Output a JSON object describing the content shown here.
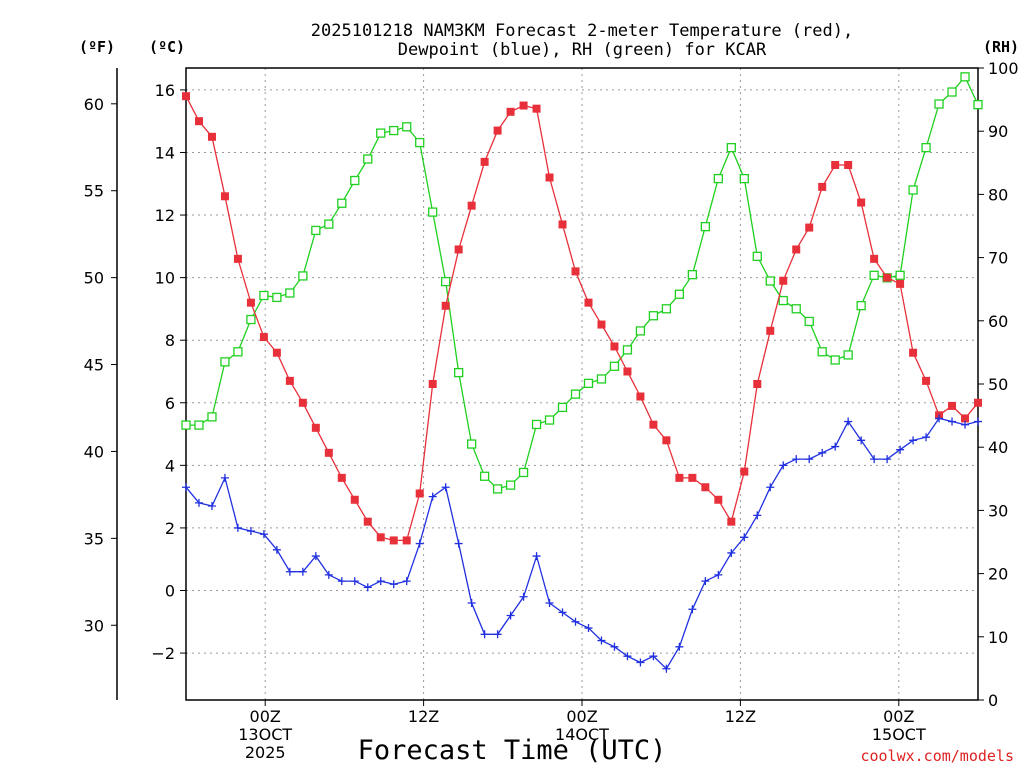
{
  "chart_data": {
    "type": "line",
    "title": [
      "2025101218 NAM3KM Forecast 2-meter Temperature (red),",
      "Dewpoint (blue), RH (green) for KCAR"
    ],
    "xlabel": "Forecast Time (UTC)",
    "unit_labels": {
      "fahrenheit": "(ºF)",
      "celsius": "(ºC)",
      "rh": "(RH)"
    },
    "credit": "coolwx.com/models",
    "x_range_hours": [
      -6,
      54
    ],
    "x_ticks": [
      {
        "hour": 0,
        "lines": [
          "00Z",
          "13OCT",
          "2025"
        ]
      },
      {
        "hour": 12,
        "lines": [
          "12Z"
        ]
      },
      {
        "hour": 24,
        "lines": [
          "00Z",
          "14OCT"
        ]
      },
      {
        "hour": 36,
        "lines": [
          "12Z"
        ]
      },
      {
        "hour": 48,
        "lines": [
          "00Z",
          "15OCT"
        ]
      }
    ],
    "y_left_c": {
      "range": [
        -3.5,
        16.7
      ],
      "ticks": [
        -2,
        0,
        2,
        4,
        6,
        8,
        10,
        12,
        14,
        16
      ]
    },
    "y_left_f": {
      "ticks": [
        30,
        35,
        40,
        45,
        50,
        55,
        60
      ]
    },
    "y_right_rh": {
      "range": [
        0,
        100
      ],
      "ticks": [
        0,
        10,
        20,
        30,
        40,
        50,
        60,
        70,
        80,
        90,
        100
      ]
    },
    "series": [
      {
        "name": "2-meter Temperature (°C)",
        "axis": "celsius",
        "color": "#e8303a",
        "marker": "filled-square",
        "values": [
          15.8,
          15.0,
          14.5,
          12.6,
          10.6,
          9.2,
          8.1,
          7.6,
          6.7,
          6.0,
          5.2,
          4.4,
          3.6,
          2.9,
          2.2,
          1.7,
          1.6,
          1.6,
          3.1,
          6.6,
          9.1,
          10.9,
          12.3,
          13.7,
          14.7,
          15.3,
          15.5,
          15.4,
          13.2,
          11.7,
          10.2,
          9.2,
          8.5,
          7.8,
          7.0,
          6.2,
          5.3,
          4.8,
          3.6,
          3.6,
          3.3,
          2.9,
          2.2,
          3.8,
          6.6,
          8.3,
          9.9,
          10.9,
          11.6,
          12.9,
          13.6,
          13.6,
          12.4,
          10.6,
          10.0,
          9.8,
          7.6,
          6.7,
          5.6,
          5.9,
          5.5,
          6.0
        ]
      },
      {
        "name": "Dewpoint (°C)",
        "axis": "celsius",
        "color": "#2030e0",
        "marker": "plus",
        "values": [
          3.3,
          2.8,
          2.7,
          3.6,
          2.0,
          1.9,
          1.8,
          1.3,
          0.6,
          0.6,
          1.1,
          0.5,
          0.3,
          0.3,
          0.1,
          0.3,
          0.2,
          0.3,
          1.5,
          3.0,
          3.3,
          1.5,
          -0.4,
          -1.4,
          -1.4,
          -0.8,
          -0.2,
          1.1,
          -0.4,
          -0.7,
          -1.0,
          -1.2,
          -1.6,
          -1.8,
          -2.1,
          -2.3,
          -2.1,
          -2.5,
          -1.8,
          -0.6,
          0.3,
          0.5,
          1.2,
          1.7,
          2.4,
          3.3,
          4.0,
          4.2,
          4.2,
          4.4,
          4.6,
          5.4,
          4.8,
          4.2,
          4.2,
          4.5,
          4.8,
          4.9,
          5.5,
          5.4,
          5.3,
          5.4
        ]
      },
      {
        "name": "Relative Humidity (%)",
        "axis": "rh",
        "color": "#20d020",
        "marker": "open-square",
        "values": [
          43.5,
          43.5,
          44.8,
          53.5,
          55.1,
          60.2,
          64.0,
          63.7,
          64.4,
          67.1,
          74.3,
          75.3,
          78.6,
          82.2,
          85.6,
          89.7,
          90.1,
          90.7,
          88.2,
          77.2,
          66.2,
          51.8,
          40.5,
          35.4,
          33.4,
          34.0,
          36.0,
          43.6,
          44.3,
          46.3,
          48.4,
          50.1,
          50.8,
          52.8,
          55.4,
          58.4,
          60.8,
          61.9,
          64.2,
          67.3,
          74.9,
          82.5,
          87.4,
          82.5,
          70.2,
          66.3,
          63.2,
          61.9,
          59.9,
          55.1,
          53.8,
          54.6,
          62.4,
          67.2,
          66.8,
          67.2,
          80.7,
          87.4,
          94.3,
          96.2,
          98.6,
          94.2
        ]
      }
    ]
  }
}
